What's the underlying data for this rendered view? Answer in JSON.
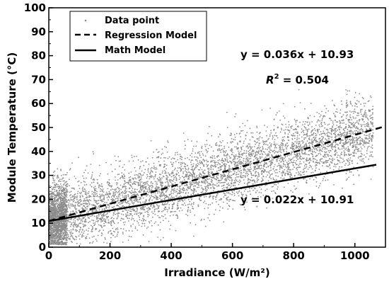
{
  "chart_data": {
    "type": "scatter",
    "xlabel": "Irradiance (W/m²)",
    "ylabel": "Module Temperature (°C)",
    "xlim": [
      0,
      1100
    ],
    "ylim": [
      0,
      100
    ],
    "x_ticks": [
      "0",
      "200",
      "400",
      "600",
      "800",
      "1000"
    ],
    "y_ticks": [
      "0",
      "10",
      "20",
      "30",
      "40",
      "50",
      "60",
      "70",
      "80",
      "90",
      "100"
    ],
    "grid": false,
    "legend_position": "top-left",
    "legend": {
      "data_point": "Data point",
      "regression": "Regression Model",
      "math": "Math Model"
    },
    "scatter_color": "#8c8c8c",
    "scatter": {
      "name": "Data point",
      "x_range": [
        0,
        1060
      ],
      "y_noise_std": 9,
      "approx_count": 12000
    },
    "series": [
      {
        "name": "Regression Model",
        "slope": 0.036,
        "intercept": 10.93,
        "style": "dashed",
        "x": [
          0,
          1090
        ]
      },
      {
        "name": "Math Model",
        "slope": 0.022,
        "intercept": 10.91,
        "style": "solid",
        "x": [
          0,
          1070
        ]
      }
    ],
    "annotations": {
      "regression_eq": "y = 0.036x + 10.93",
      "r2_label": "R",
      "r2_sup": "2",
      "r2_value": " = 0.504",
      "math_eq": "y = 0.022x + 10.91"
    }
  }
}
